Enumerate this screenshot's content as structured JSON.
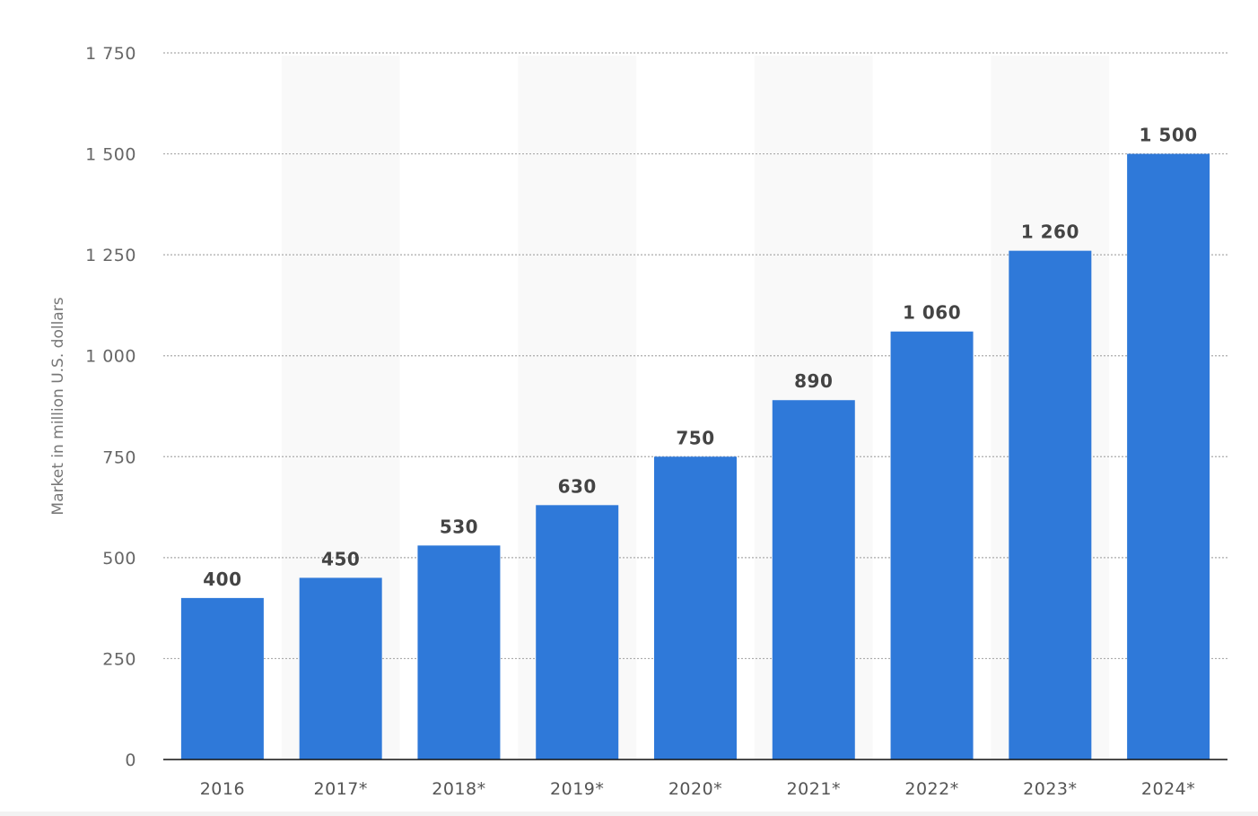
{
  "chart_data": {
    "type": "bar",
    "title": "",
    "xlabel": "",
    "ylabel": "Market in million U.S. dollars",
    "categories": [
      "2016",
      "2017*",
      "2018*",
      "2019*",
      "2020*",
      "2021*",
      "2022*",
      "2023*",
      "2024*"
    ],
    "values": [
      400,
      450,
      530,
      630,
      750,
      890,
      1060,
      1260,
      1500
    ],
    "value_labels": [
      "400",
      "450",
      "530",
      "630",
      "750",
      "890",
      "1 060",
      "1 260",
      "1 500"
    ],
    "ylim": [
      0,
      1750
    ],
    "yticks": [
      0,
      250,
      500,
      750,
      1000,
      1250,
      1500,
      1750
    ],
    "ytick_labels": [
      "0",
      "250",
      "500",
      "750",
      "1 000",
      "1 250",
      "1 500",
      "1 750"
    ],
    "grid": true,
    "bar_color": "#2f79d9",
    "band_color": "#f9f9f9"
  }
}
